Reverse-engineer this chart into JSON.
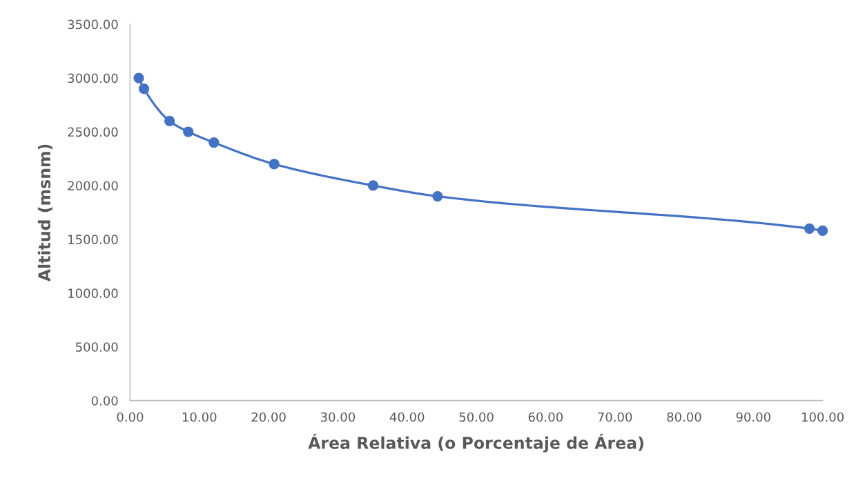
{
  "chart_data": {
    "type": "line",
    "xlabel": "Área Relativa (o Porcentaje de Área)",
    "ylabel": "Altitud (msnm)",
    "x": [
      1.25,
      2.0,
      5.7,
      8.4,
      12.1,
      20.8,
      35.1,
      44.4,
      98.1,
      100.0
    ],
    "series": [
      {
        "color": "#4472c4",
        "values": [
          3000,
          2900,
          2600,
          2500,
          2400,
          2200,
          2000,
          1900,
          1600,
          1580
        ]
      }
    ],
    "xlim": [
      0,
      100
    ],
    "ylim": [
      0,
      3500
    ],
    "xticks": [
      {
        "value": 0,
        "label": "0.00"
      },
      {
        "value": 10,
        "label": "10.00"
      },
      {
        "value": 20,
        "label": "20.00"
      },
      {
        "value": 30,
        "label": "30.00"
      },
      {
        "value": 40,
        "label": "40.00"
      },
      {
        "value": 50,
        "label": "50.00"
      },
      {
        "value": 60,
        "label": "60.00"
      },
      {
        "value": 70,
        "label": "70.00"
      },
      {
        "value": 80,
        "label": "80.00"
      },
      {
        "value": 90,
        "label": "90.00"
      },
      {
        "value": 100,
        "label": "100.00"
      }
    ],
    "yticks": [
      {
        "value": 0,
        "label": "0.00"
      },
      {
        "value": 500,
        "label": "500.00"
      },
      {
        "value": 1000,
        "label": "1000.00"
      },
      {
        "value": 1500,
        "label": "1500.00"
      },
      {
        "value": 2000,
        "label": "2000.00"
      },
      {
        "value": 2500,
        "label": "2500.00"
      },
      {
        "value": 3000,
        "label": "3000.00"
      },
      {
        "value": 3500,
        "label": "3500.00"
      }
    ],
    "grid": false,
    "marker": "circle",
    "line_style": "solid"
  }
}
